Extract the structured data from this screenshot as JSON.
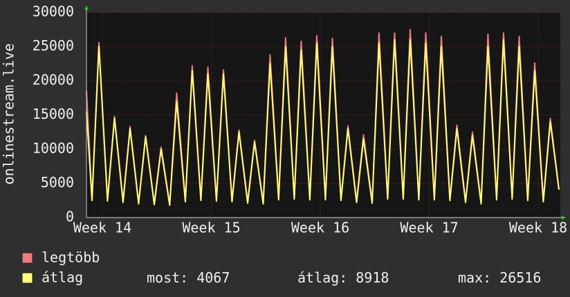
{
  "chart_data": {
    "type": "line",
    "y_label": "onlinestream.live",
    "x": [
      13.854,
      13.905,
      13.968,
      14.047,
      14.111,
      14.19,
      14.254,
      14.333,
      14.397,
      14.476,
      14.539,
      14.618,
      14.682,
      14.761,
      14.825,
      14.904,
      14.968,
      15.047,
      15.111,
      15.19,
      15.254,
      15.333,
      15.397,
      15.476,
      15.539,
      15.618,
      15.682,
      15.761,
      15.825,
      15.904,
      15.968,
      16.047,
      16.111,
      16.19,
      16.254,
      16.333,
      16.397,
      16.476,
      16.539,
      16.618,
      16.682,
      16.761,
      16.825,
      16.904,
      16.968,
      17.047,
      17.111,
      17.19,
      17.254,
      17.333,
      17.397,
      17.476,
      17.539,
      17.618,
      17.682,
      17.761,
      17.825,
      17.904,
      17.968,
      18.047,
      18.111,
      18.19
    ],
    "series": [
      {
        "name": "legtöbb",
        "color": "#f07a80",
        "values": [
          18500,
          2700,
          25600,
          2600,
          14800,
          2400,
          13300,
          2200,
          12000,
          2100,
          10300,
          2000,
          18200,
          2500,
          22200,
          2700,
          22000,
          2600,
          21600,
          2500,
          12800,
          2300,
          11300,
          2200,
          23800,
          2800,
          26300,
          2900,
          25800,
          2800,
          26600,
          2800,
          26200,
          2700,
          13400,
          2400,
          12100,
          2300,
          27000,
          2900,
          27000,
          2900,
          27500,
          2800,
          27000,
          2800,
          26500,
          2700,
          13500,
          2400,
          12500,
          2200,
          26800,
          2800,
          27000,
          2900,
          26500,
          2700,
          22600,
          2500,
          14500,
          4200
        ]
      },
      {
        "name": "átlag",
        "color": "#ffff7a",
        "values": [
          15500,
          2500,
          25000,
          2400,
          14500,
          2200,
          13000,
          2000,
          11800,
          1900,
          10000,
          1800,
          17000,
          2300,
          21500,
          2500,
          21000,
          2400,
          21000,
          2300,
          12500,
          2100,
          11000,
          2000,
          22500,
          2600,
          25000,
          2700,
          24500,
          2600,
          25500,
          2600,
          25000,
          2500,
          13000,
          2200,
          11500,
          2100,
          25500,
          2700,
          26000,
          2700,
          26000,
          2600,
          25500,
          2600,
          25000,
          2500,
          13000,
          2200,
          12000,
          2000,
          25000,
          2600,
          26000,
          2700,
          25000,
          2500,
          21500,
          2300,
          14000,
          4067
        ]
      }
    ],
    "xlim": [
      13.854,
      18.203
    ],
    "xticks": [
      {
        "value": 14,
        "label": "Week 14"
      },
      {
        "value": 15,
        "label": "Week 15"
      },
      {
        "value": 16,
        "label": "Week 16"
      },
      {
        "value": 17,
        "label": "Week 17"
      },
      {
        "value": 18,
        "label": "Week 18"
      }
    ],
    "ylim": [
      0,
      30000
    ],
    "yticks": [
      0,
      5000,
      10000,
      15000,
      20000,
      25000,
      30000
    ],
    "grid": true,
    "stats": [
      {
        "label": "most:",
        "value": 4067
      },
      {
        "label": "átlag:",
        "value": 8918
      },
      {
        "label": "max:",
        "value": 26516
      }
    ]
  }
}
